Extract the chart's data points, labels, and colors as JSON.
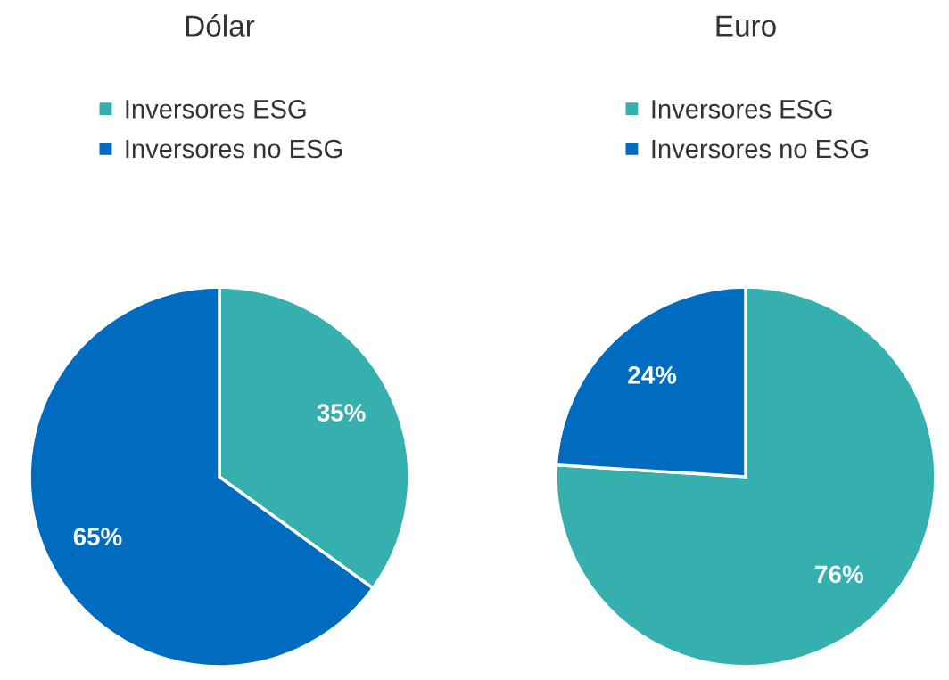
{
  "chart_data": [
    {
      "type": "pie",
      "title": "Dólar",
      "categories": [
        "Inversores ESG",
        "Inversores no ESG"
      ],
      "values": [
        35,
        65
      ],
      "colors": [
        "#35b0ae",
        "#006cbf"
      ],
      "value_labels": [
        "35%",
        "65%"
      ],
      "legend": "top"
    },
    {
      "type": "pie",
      "title": "Euro",
      "categories": [
        "Inversores ESG",
        "Inversores no ESG"
      ],
      "values": [
        76,
        24
      ],
      "colors": [
        "#35b0ae",
        "#006cbf"
      ],
      "value_labels": [
        "76%",
        "24%"
      ],
      "legend": "top"
    }
  ]
}
